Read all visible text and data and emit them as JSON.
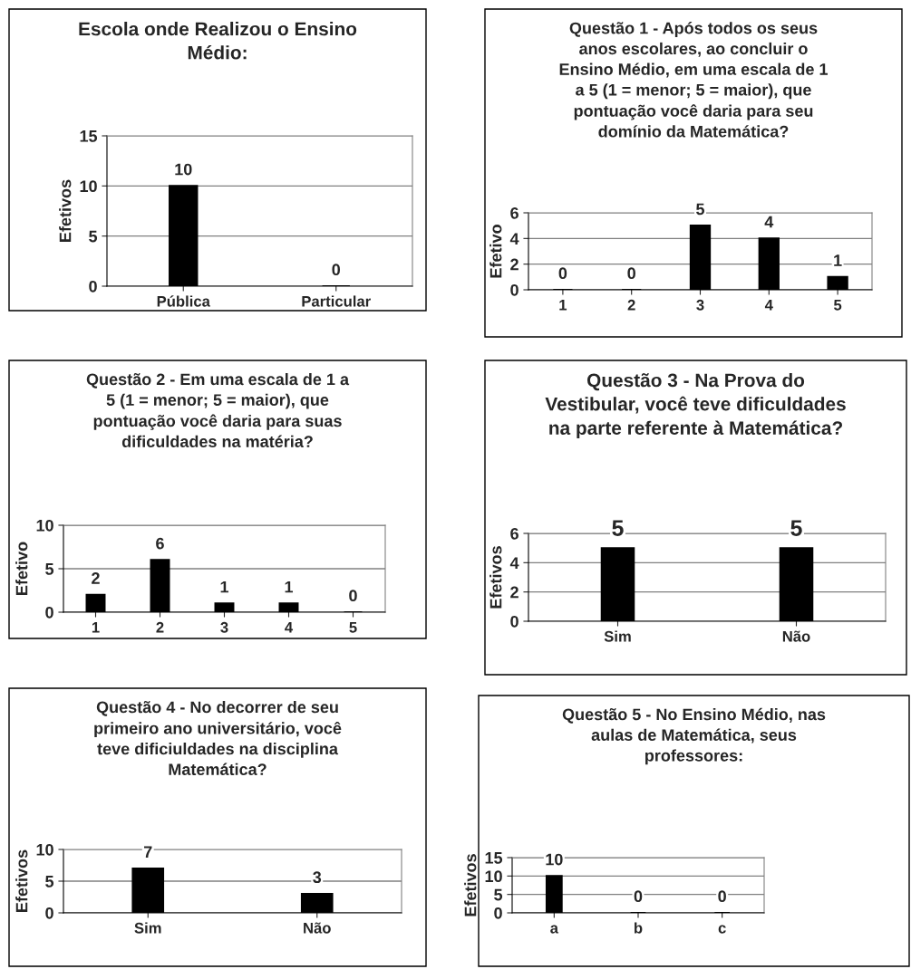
{
  "chart_data": [
    {
      "type": "bar",
      "title": "Escola onde Realizou o Ensino\nMédio:",
      "categories": [
        "Pública",
        "Particular"
      ],
      "values": [
        10,
        0
      ],
      "color": "#000000",
      "ylabel": "Efetivos",
      "ylim": [
        0,
        15
      ],
      "yticks": [
        0,
        5,
        10,
        15
      ],
      "grid": "y",
      "data_labels": true
    },
    {
      "type": "bar",
      "title": "Questão 1 - Após todos os seus\nanos escolares, ao concluir o\nEnsino Médio, em uma escala de 1\na 5 (1 = menor; 5 = maior), que\npontuação você daria para seu\ndomínio da Matemática?",
      "categories": [
        "1",
        "2",
        "3",
        "4",
        "5"
      ],
      "values": [
        0,
        0,
        5,
        4,
        1
      ],
      "color": "#000000",
      "ylabel": "Efetivo",
      "ylim": [
        0,
        6
      ],
      "yticks": [
        0,
        2,
        4,
        6
      ],
      "grid": "y",
      "data_labels": true
    },
    {
      "type": "bar",
      "title": "Questão 2 - Em uma escala de 1 a\n5 (1 = menor; 5 = maior), que\npontuação você daria para suas\ndificuldades na matéria?",
      "categories": [
        "1",
        "2",
        "3",
        "4",
        "5"
      ],
      "values": [
        2,
        6,
        1,
        1,
        0
      ],
      "color": "#000000",
      "ylabel": "Efetivo",
      "ylim": [
        0,
        10
      ],
      "yticks": [
        0,
        5,
        10
      ],
      "grid": "y",
      "data_labels": true
    },
    {
      "type": "bar",
      "title": "Questão 3 - Na Prova do\nVestibular, você teve dificuldades\nna parte referente à Matemática?",
      "categories": [
        "Sim",
        "Não"
      ],
      "values": [
        5,
        5
      ],
      "color": "#000000",
      "ylabel": "Efetivos",
      "ylim": [
        0,
        6
      ],
      "yticks": [
        0,
        2,
        4,
        6
      ],
      "grid": "y",
      "data_labels": true
    },
    {
      "type": "bar",
      "title": "Questão 4 - No decorrer de seu\nprimeiro ano universitário, você\nteve dificiuldades na disciplina\nMatemática?",
      "categories": [
        "Sim",
        "Não"
      ],
      "values": [
        7,
        3
      ],
      "color": "#000000",
      "ylabel": "Efetivos",
      "ylim": [
        0,
        10
      ],
      "yticks": [
        0,
        5,
        10
      ],
      "grid": "y",
      "data_labels": true
    },
    {
      "type": "bar",
      "title": "Questão 5 - No Ensino Médio, nas\naulas de Matemática, seus\nprofessores:",
      "categories": [
        "a",
        "b",
        "c"
      ],
      "values": [
        10,
        0,
        0
      ],
      "color": "#000000",
      "ylabel": "Efetivos",
      "ylim": [
        0,
        15
      ],
      "yticks": [
        0,
        5,
        10,
        15
      ],
      "grid": "y",
      "data_labels": true
    }
  ]
}
